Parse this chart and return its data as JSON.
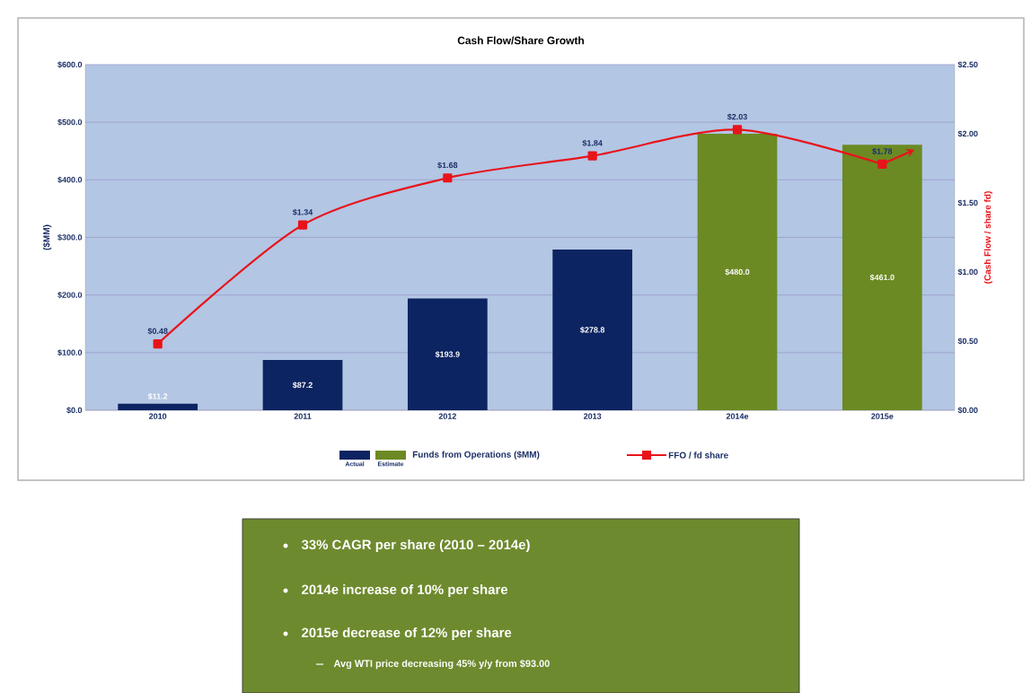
{
  "chart_data": {
    "type": "bar",
    "title": "Cash Flow/Share Growth",
    "ylabel": "($MM)",
    "y2label": "(Cash Flow / share fd)",
    "categories": [
      "2010",
      "2011",
      "2012",
      "2013",
      "2014e",
      "2015e"
    ],
    "series": [
      {
        "name": "Funds from Operations ($MM)",
        "colors": [
          "#0c2461",
          "#0c2461",
          "#0c2461",
          "#0c2461",
          "#6b8a23",
          "#6b8a23"
        ],
        "values": [
          11.2,
          87.2,
          193.9,
          278.8,
          480.0,
          461.0
        ],
        "value_labels": [
          "$11.2",
          "$87.2",
          "$193.9",
          "$278.8",
          "$480.0",
          "$461.0"
        ]
      },
      {
        "name": "FFO / fd share",
        "type": "line",
        "axis": "y2",
        "color": "#e8141b",
        "marker": "square",
        "values": [
          0.48,
          1.34,
          1.68,
          1.84,
          2.03,
          1.78
        ],
        "value_labels": [
          "$0.48",
          "$1.34",
          "$1.68",
          "$1.84",
          "$2.03",
          "$1.78"
        ]
      }
    ],
    "ylim": [
      0,
      600
    ],
    "yticks": [
      {
        "value": 0,
        "label": "$0.0"
      },
      {
        "value": 100,
        "label": "$100.0"
      },
      {
        "value": 200,
        "label": "$200.0"
      },
      {
        "value": 300,
        "label": "$300.0"
      },
      {
        "value": 400,
        "label": "$400.0"
      },
      {
        "value": 500,
        "label": "$500.0"
      },
      {
        "value": 600,
        "label": "$600.0"
      }
    ],
    "y2lim": [
      0,
      2.5
    ],
    "y2ticks": [
      {
        "value": 0,
        "label": "$0.00"
      },
      {
        "value": 0.5,
        "label": "$0.50"
      },
      {
        "value": 1,
        "label": "$1.00"
      },
      {
        "value": 1.5,
        "label": "$1.50"
      },
      {
        "value": 2,
        "label": "$2.00"
      },
      {
        "value": 2.5,
        "label": "$2.50"
      }
    ],
    "grid": "y",
    "legend": "bottom",
    "annotations": [
      "Actual",
      "Estimate",
      "33% CAGR per share (2010 – 2014e)",
      "2014e increase of 10% per share",
      "2015e decrease of 12% per share",
      "Avg WTI price decreasing 45% y/y from $93.00"
    ]
  }
}
